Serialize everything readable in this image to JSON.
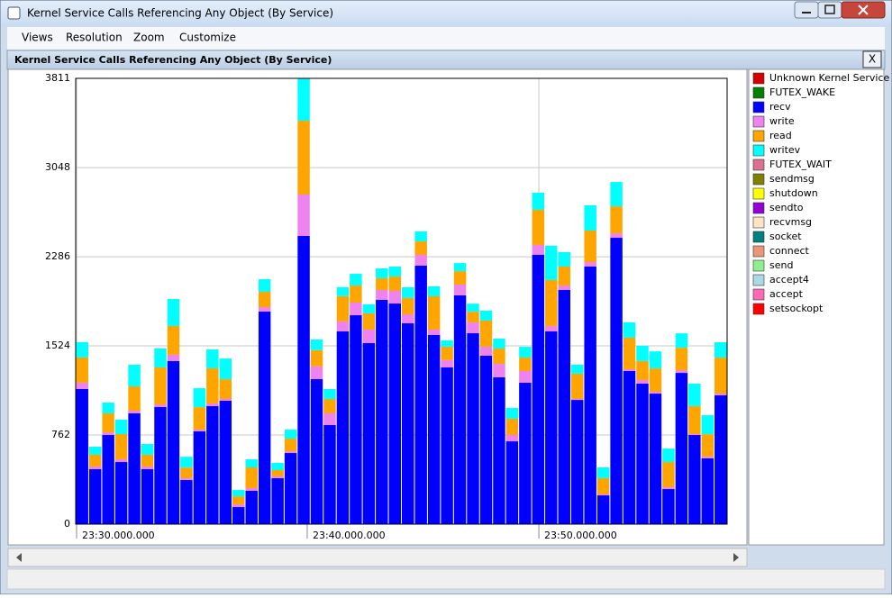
{
  "ui": {
    "window_title": "Kernel Service Calls Referencing Any Object (By Service)",
    "menu": [
      "Views",
      "Resolution",
      "Zoom",
      "Customize"
    ],
    "close_label": "X"
  },
  "chart_data": {
    "type": "stacked-bar",
    "title": "Kernel Service Calls Referencing Any Object (By Service)",
    "categories": [
      null,
      null,
      null,
      null,
      null,
      null,
      null,
      null,
      null,
      null,
      null,
      null,
      null,
      null,
      null,
      null,
      null,
      null,
      null,
      null,
      null,
      null,
      null,
      null,
      null,
      null,
      null,
      null,
      null,
      null,
      null,
      null,
      null,
      null,
      null,
      null,
      null,
      null,
      null,
      null,
      null,
      null,
      null,
      null,
      null,
      null,
      null,
      null,
      null,
      null
    ],
    "xlim": [
      0,
      50
    ],
    "xticks": [
      {
        "value": 0.07,
        "label": "23:30.000.000"
      },
      {
        "value": 17.77,
        "label": "23:40.000.000"
      },
      {
        "value": 35.55,
        "label": "23:50.000.000"
      }
    ],
    "ylim": [
      0,
      3811
    ],
    "yticks": [
      0,
      762,
      1524,
      2286,
      3048,
      3811
    ],
    "grid": true,
    "series": [
      {
        "name": "Unknown Kernel Service",
        "color": "#d40000",
        "values": [
          0,
          0,
          0,
          0,
          0,
          0,
          0,
          0,
          0,
          0,
          0,
          0,
          0,
          0,
          0,
          0,
          0,
          0,
          0,
          0,
          0,
          0,
          0,
          0,
          0,
          0,
          0,
          0,
          0,
          0,
          0,
          0,
          0,
          0,
          0,
          0,
          0,
          0,
          0,
          0,
          0,
          0,
          0,
          0,
          0,
          0,
          0,
          0,
          0,
          0
        ]
      },
      {
        "name": "FUTEX_WAKE",
        "color": "#008000",
        "values": [
          0,
          0,
          0,
          0,
          0,
          0,
          0,
          0,
          0,
          0,
          0,
          0,
          0,
          0,
          0,
          0,
          0,
          0,
          0,
          0,
          0,
          0,
          0,
          0,
          0,
          0,
          0,
          0,
          0,
          0,
          0,
          0,
          0,
          0,
          0,
          0,
          0,
          0,
          0,
          0,
          0,
          0,
          0,
          0,
          0,
          0,
          0,
          0,
          0,
          0
        ]
      },
      {
        "name": "recv",
        "color": "#0000ff",
        "values": [
          1155,
          470,
          762,
          531,
          947,
          470,
          1001,
          1394,
          377,
          793,
          1009,
          1055,
          146,
          285,
          1817,
          393,
          608,
          2464,
          1240,
          847,
          1648,
          1786,
          1548,
          1917,
          1886,
          1717,
          2210,
          1617,
          1340,
          1956,
          1632,
          1440,
          1255,
          708,
          1209,
          2302,
          1648,
          2002,
          1062,
          2202,
          246,
          2448,
          1309,
          1201,
          1116,
          300,
          1293,
          762,
          562,
          1101
        ]
      },
      {
        "name": "write",
        "color": "#ee82ee",
        "values": [
          54,
          23,
          23,
          23,
          23,
          23,
          23,
          54,
          15,
          15,
          23,
          15,
          23,
          23,
          38,
          15,
          15,
          354,
          108,
          100,
          85,
          108,
          115,
          85,
          108,
          77,
          92,
          46,
          62,
          92,
          92,
          77,
          115,
          54,
          100,
          85,
          46,
          38,
          8,
          38,
          8,
          38,
          15,
          31,
          15,
          15,
          23,
          8,
          15,
          15
        ]
      },
      {
        "name": "read",
        "color": "#ffa500",
        "values": [
          216,
          100,
          162,
          216,
          208,
          100,
          316,
          246,
          92,
          192,
          300,
          169,
          69,
          177,
          131,
          54,
          108,
          631,
          139,
          123,
          216,
          146,
          139,
          100,
          123,
          139,
          115,
          285,
          115,
          115,
          92,
          223,
          131,
          139,
          115,
          300,
          393,
          162,
          216,
          270,
          139,
          231,
          270,
          162,
          200,
          216,
          192,
          239,
          192,
          308
        ]
      },
      {
        "name": "writev",
        "color": "#00ffff",
        "values": [
          131,
          69,
          92,
          123,
          185,
          92,
          162,
          231,
          92,
          162,
          162,
          177,
          54,
          69,
          108,
          62,
          77,
          362,
          92,
          85,
          77,
          100,
          77,
          85,
          85,
          92,
          85,
          85,
          54,
          69,
          69,
          85,
          85,
          92,
          92,
          146,
          293,
          123,
          77,
          216,
          92,
          208,
          131,
          131,
          146,
          115,
          123,
          192,
          162,
          131
        ]
      },
      {
        "name": "FUTEX_WAIT",
        "color": "#db7093",
        "values": [
          0,
          0,
          0,
          0,
          0,
          0,
          0,
          0,
          0,
          0,
          0,
          0,
          0,
          0,
          0,
          0,
          0,
          0,
          0,
          0,
          0,
          0,
          0,
          0,
          0,
          0,
          0,
          0,
          0,
          0,
          0,
          0,
          0,
          0,
          0,
          0,
          0,
          0,
          0,
          0,
          0,
          0,
          0,
          0,
          0,
          0,
          0,
          0,
          0,
          0
        ]
      },
      {
        "name": "sendmsg",
        "color": "#808000",
        "values": [
          0,
          0,
          0,
          0,
          0,
          0,
          0,
          0,
          0,
          0,
          0,
          0,
          0,
          0,
          0,
          0,
          0,
          0,
          0,
          0,
          0,
          0,
          0,
          0,
          0,
          0,
          0,
          0,
          0,
          0,
          0,
          0,
          0,
          0,
          0,
          0,
          0,
          0,
          0,
          0,
          0,
          0,
          0,
          0,
          0,
          0,
          0,
          0,
          0,
          0
        ]
      },
      {
        "name": "shutdown",
        "color": "#ffff00",
        "values": [
          0,
          0,
          0,
          0,
          0,
          0,
          0,
          0,
          0,
          0,
          0,
          0,
          0,
          0,
          0,
          0,
          0,
          0,
          0,
          0,
          0,
          0,
          0,
          0,
          0,
          0,
          0,
          0,
          0,
          0,
          0,
          0,
          0,
          0,
          0,
          0,
          0,
          0,
          0,
          0,
          0,
          0,
          0,
          0,
          0,
          0,
          0,
          0,
          0,
          0
        ]
      },
      {
        "name": "sendto",
        "color": "#9400d3",
        "values": [
          0,
          0,
          0,
          0,
          0,
          0,
          0,
          0,
          0,
          0,
          0,
          0,
          0,
          0,
          0,
          0,
          0,
          0,
          0,
          0,
          0,
          0,
          0,
          0,
          0,
          0,
          0,
          0,
          0,
          0,
          0,
          0,
          0,
          0,
          0,
          0,
          0,
          0,
          0,
          0,
          0,
          0,
          0,
          0,
          0,
          0,
          0,
          0,
          0,
          0
        ]
      },
      {
        "name": "recvmsg",
        "color": "#ffe4c4",
        "values": [
          0,
          0,
          0,
          0,
          0,
          0,
          0,
          0,
          0,
          0,
          0,
          0,
          0,
          0,
          0,
          0,
          0,
          0,
          0,
          0,
          0,
          0,
          0,
          0,
          0,
          0,
          0,
          0,
          0,
          0,
          0,
          0,
          0,
          0,
          0,
          0,
          0,
          0,
          0,
          0,
          0,
          0,
          0,
          0,
          0,
          0,
          0,
          0,
          0,
          0
        ]
      },
      {
        "name": "socket",
        "color": "#008080",
        "values": [
          0,
          0,
          0,
          0,
          0,
          0,
          0,
          0,
          0,
          0,
          0,
          0,
          0,
          0,
          0,
          0,
          0,
          0,
          0,
          0,
          0,
          0,
          0,
          0,
          0,
          0,
          0,
          0,
          0,
          0,
          0,
          0,
          0,
          0,
          0,
          0,
          0,
          0,
          0,
          0,
          0,
          0,
          0,
          0,
          0,
          0,
          0,
          0,
          0,
          0
        ]
      },
      {
        "name": "connect",
        "color": "#e9967a",
        "values": [
          0,
          0,
          0,
          0,
          0,
          0,
          0,
          0,
          0,
          0,
          0,
          0,
          0,
          0,
          0,
          0,
          0,
          0,
          0,
          0,
          0,
          0,
          0,
          0,
          0,
          0,
          0,
          0,
          0,
          0,
          0,
          0,
          0,
          0,
          0,
          0,
          0,
          0,
          0,
          0,
          0,
          0,
          0,
          0,
          0,
          0,
          0,
          0,
          0,
          0
        ]
      },
      {
        "name": "send",
        "color": "#90ee90",
        "values": [
          0,
          0,
          0,
          0,
          0,
          0,
          0,
          0,
          0,
          0,
          0,
          0,
          0,
          0,
          0,
          0,
          0,
          0,
          0,
          0,
          0,
          0,
          0,
          0,
          0,
          0,
          0,
          0,
          0,
          0,
          0,
          0,
          0,
          0,
          0,
          0,
          0,
          0,
          0,
          0,
          0,
          0,
          0,
          0,
          0,
          0,
          0,
          0,
          0,
          0
        ]
      },
      {
        "name": "accept4",
        "color": "#add8e6",
        "values": [
          0,
          0,
          0,
          0,
          0,
          0,
          0,
          0,
          0,
          0,
          0,
          0,
          0,
          0,
          0,
          0,
          0,
          0,
          0,
          0,
          0,
          0,
          0,
          0,
          0,
          0,
          0,
          0,
          0,
          0,
          0,
          0,
          0,
          0,
          0,
          0,
          0,
          0,
          0,
          0,
          0,
          0,
          0,
          0,
          0,
          0,
          0,
          0,
          0,
          0
        ]
      },
      {
        "name": "accept",
        "color": "#ff69b4",
        "values": [
          0,
          0,
          0,
          0,
          0,
          0,
          0,
          0,
          0,
          0,
          0,
          0,
          0,
          0,
          0,
          0,
          0,
          0,
          0,
          0,
          0,
          0,
          0,
          0,
          0,
          0,
          0,
          0,
          0,
          0,
          0,
          0,
          0,
          0,
          0,
          0,
          0,
          0,
          0,
          0,
          0,
          0,
          0,
          0,
          0,
          0,
          0,
          0,
          0,
          0
        ]
      },
      {
        "name": "setsockopt",
        "color": "#ff0000",
        "values": [
          0,
          0,
          0,
          0,
          0,
          0,
          0,
          0,
          0,
          0,
          0,
          0,
          0,
          0,
          0,
          0,
          0,
          0,
          0,
          0,
          0,
          0,
          0,
          0,
          0,
          0,
          0,
          0,
          0,
          0,
          0,
          0,
          0,
          0,
          0,
          0,
          0,
          0,
          0,
          0,
          0,
          0,
          0,
          0,
          0,
          0,
          0,
          0,
          0,
          0
        ]
      }
    ]
  }
}
